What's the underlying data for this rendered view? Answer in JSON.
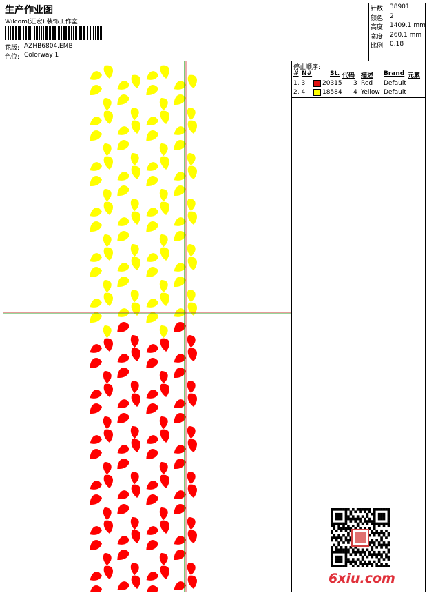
{
  "header": {
    "title": "生产作业图",
    "studio": "Wilcom(汇宏) 装饰工作室",
    "design_label": "花版:",
    "design": "AZHB6804.EMB",
    "colorway_label": "色位:",
    "colorway": "Colorway 1"
  },
  "stats": [
    {
      "label": "针数:",
      "value": "38901"
    },
    {
      "label": "颜色:",
      "value": "2"
    },
    {
      "label": "高度:",
      "value": "1409.1 mm"
    },
    {
      "label": "宽度:",
      "value": "260.1 mm"
    },
    {
      "label": "比例:",
      "value": "0.18"
    }
  ],
  "stop_sequence": {
    "title": "停止顺序:",
    "columns": [
      "#",
      "N#",
      "St.",
      "代码",
      "描述",
      "Brand",
      "元素"
    ],
    "rows": [
      [
        "1. 3",
        "20315",
        "3",
        "Red",
        "Default"
      ],
      [
        "2. 4",
        "18584",
        "4",
        "Yellow",
        "Default"
      ]
    ]
  },
  "watermark": "6xiu.com"
}
